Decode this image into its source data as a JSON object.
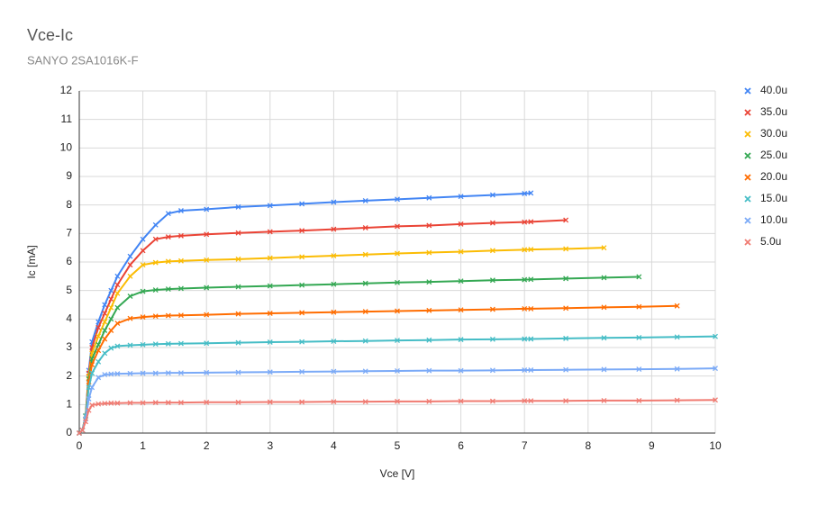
{
  "chart_data": {
    "type": "line",
    "title": "Vce-Ic",
    "subtitle": "SANYO 2SA1016K-F",
    "x_label": "Vce [V]",
    "y_label": "Ic [mA]",
    "x": [
      0,
      0.05,
      0.1,
      0.15,
      0.2,
      0.3,
      0.4,
      0.5,
      0.6,
      0.8,
      1,
      1.2,
      1.4,
      1.6,
      2,
      2.5,
      3,
      3.5,
      4,
      4.5,
      5,
      5.5,
      6,
      6.5,
      7,
      7.1,
      7.65,
      8.25,
      8.8,
      9.4,
      10
    ],
    "xlim": [
      0,
      10
    ],
    "xticks": [
      0,
      1,
      2,
      3,
      4,
      5,
      6,
      7,
      8,
      9,
      10
    ],
    "ylim": [
      0,
      12
    ],
    "yticks": [
      0,
      1,
      2,
      3,
      4,
      5,
      6,
      7,
      8,
      9,
      10,
      11,
      12
    ],
    "grid": true,
    "legend": "right",
    "series": [
      {
        "name": "40.0u",
        "color": "#4285f4",
        "values": [
          0,
          0.1,
          0.6,
          2.2,
          3.2,
          3.9,
          4.5,
          5.0,
          5.5,
          6.2,
          6.8,
          7.3,
          7.7,
          7.8,
          7.85,
          7.93,
          7.98,
          8.04,
          8.1,
          8.15,
          8.2,
          8.25,
          8.3,
          8.35,
          8.4,
          8.42,
          null,
          null,
          null,
          null,
          null
        ]
      },
      {
        "name": "35.0u",
        "color": "#ea4335",
        "values": [
          0,
          0.1,
          0.6,
          2.1,
          3.0,
          3.7,
          4.2,
          4.7,
          5.2,
          5.9,
          6.4,
          6.8,
          6.88,
          6.92,
          6.97,
          7.02,
          7.06,
          7.1,
          7.15,
          7.2,
          7.25,
          7.28,
          7.33,
          7.37,
          7.4,
          7.41,
          7.47,
          null,
          null,
          null,
          null
        ]
      },
      {
        "name": "30.0u",
        "color": "#fbbc04",
        "values": [
          0,
          0.1,
          0.6,
          2.0,
          2.8,
          3.4,
          3.9,
          4.4,
          4.9,
          5.5,
          5.9,
          5.98,
          6.02,
          6.04,
          6.07,
          6.1,
          6.14,
          6.18,
          6.22,
          6.26,
          6.3,
          6.33,
          6.36,
          6.4,
          6.43,
          6.44,
          6.46,
          6.5,
          null,
          null,
          null
        ]
      },
      {
        "name": "25.0u",
        "color": "#34a853",
        "values": [
          0,
          0.1,
          0.6,
          1.9,
          2.6,
          3.1,
          3.6,
          4.0,
          4.4,
          4.8,
          4.97,
          5.02,
          5.05,
          5.07,
          5.1,
          5.13,
          5.16,
          5.19,
          5.22,
          5.25,
          5.28,
          5.3,
          5.33,
          5.36,
          5.38,
          5.39,
          5.42,
          5.45,
          5.48,
          null,
          null
        ]
      },
      {
        "name": "20.0u",
        "color": "#ff6d01",
        "values": [
          0,
          0.1,
          0.6,
          1.8,
          2.4,
          2.9,
          3.3,
          3.6,
          3.85,
          4.02,
          4.07,
          4.1,
          4.12,
          4.13,
          4.15,
          4.18,
          4.2,
          4.22,
          4.24,
          4.26,
          4.28,
          4.3,
          4.32,
          4.34,
          4.36,
          4.36,
          4.38,
          4.41,
          4.43,
          4.46,
          null
        ]
      },
      {
        "name": "15.0u",
        "color": "#46bdc6",
        "values": [
          0,
          0.1,
          0.6,
          1.6,
          2.1,
          2.5,
          2.8,
          2.98,
          3.05,
          3.08,
          3.1,
          3.12,
          3.13,
          3.14,
          3.15,
          3.17,
          3.19,
          3.2,
          3.22,
          3.23,
          3.25,
          3.26,
          3.28,
          3.29,
          3.3,
          3.3,
          3.32,
          3.34,
          3.35,
          3.37,
          3.39
        ]
      },
      {
        "name": "10.0u",
        "color": "#7baaf7",
        "values": [
          0,
          0.1,
          0.5,
          1.2,
          1.6,
          1.95,
          2.05,
          2.07,
          2.08,
          2.09,
          2.1,
          2.1,
          2.11,
          2.11,
          2.12,
          2.13,
          2.14,
          2.15,
          2.16,
          2.17,
          2.18,
          2.19,
          2.19,
          2.2,
          2.21,
          2.21,
          2.22,
          2.23,
          2.24,
          2.25,
          2.27
        ]
      },
      {
        "name": "5.0u",
        "color": "#f07b72",
        "values": [
          0,
          0.1,
          0.4,
          0.8,
          0.98,
          1.02,
          1.04,
          1.05,
          1.05,
          1.06,
          1.06,
          1.07,
          1.07,
          1.07,
          1.08,
          1.08,
          1.09,
          1.09,
          1.1,
          1.1,
          1.11,
          1.11,
          1.12,
          1.12,
          1.13,
          1.13,
          1.13,
          1.14,
          1.14,
          1.15,
          1.16
        ]
      }
    ]
  }
}
